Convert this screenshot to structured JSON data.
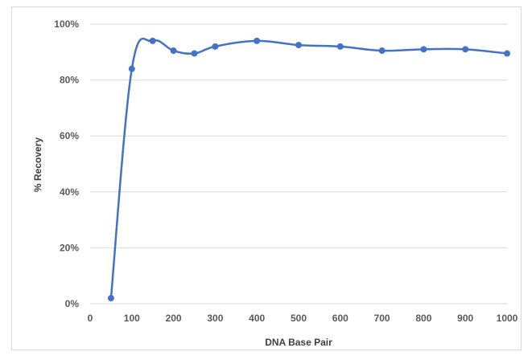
{
  "chart_data": {
    "type": "line",
    "title": "",
    "xlabel": "DNA Base Pair",
    "ylabel": "% Recovery",
    "xlim": [
      0,
      1000
    ],
    "ylim": [
      0,
      100
    ],
    "x_ticks": [
      "0",
      "100",
      "200",
      "300",
      "400",
      "500",
      "600",
      "700",
      "800",
      "900",
      "1000"
    ],
    "y_ticks": [
      "0%",
      "20%",
      "40%",
      "60%",
      "80%",
      "100%"
    ],
    "grid": true,
    "legend": "none",
    "smooth": true,
    "series": [
      {
        "color": "#4472C4",
        "x": [
          50,
          100,
          150,
          200,
          250,
          300,
          400,
          500,
          600,
          700,
          800,
          900,
          1000
        ],
        "y": [
          2,
          84,
          94,
          90.5,
          89.5,
          92,
          94,
          92.5,
          92,
          90.5,
          91,
          91,
          89.5
        ]
      }
    ]
  }
}
